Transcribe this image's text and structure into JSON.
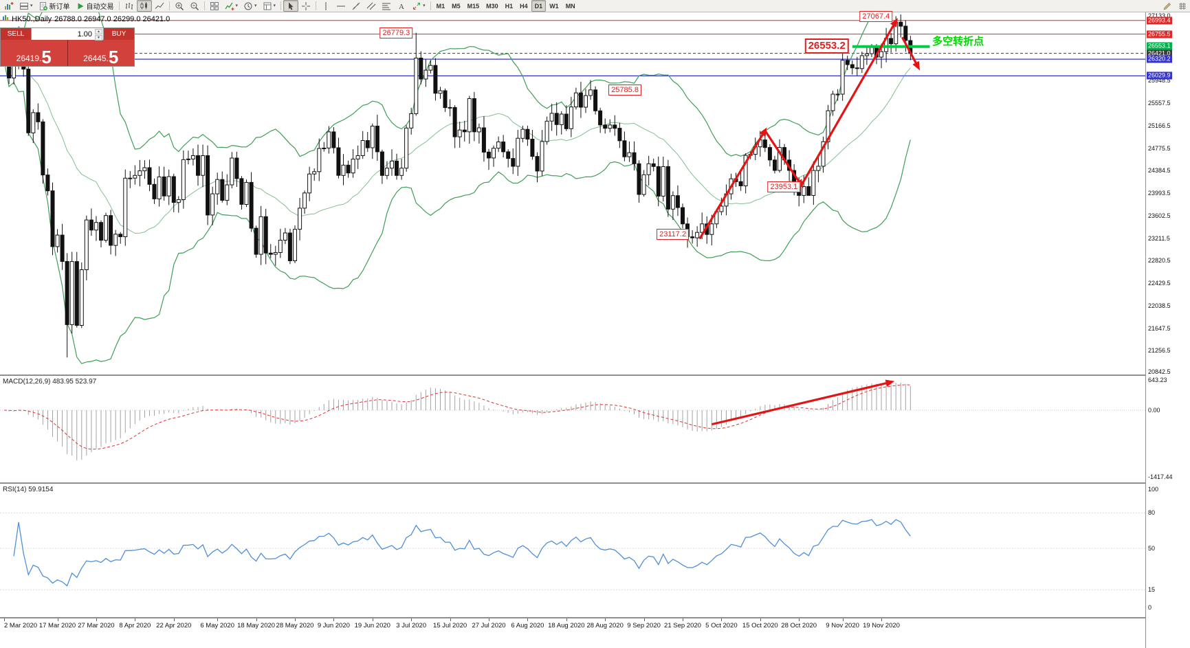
{
  "app": {
    "toolbar": {
      "items": [
        {
          "type": "button",
          "name": "new-chart-button",
          "icon": "chart-add"
        },
        {
          "type": "button",
          "name": "profiles-button",
          "icon": "layout",
          "caret": true
        },
        {
          "type": "button",
          "name": "new-order-button",
          "icon": "order",
          "label": "新订单"
        },
        {
          "type": "button",
          "name": "autotrading-button",
          "icon": "play",
          "label": "自动交易"
        },
        {
          "type": "sep"
        },
        {
          "type": "button",
          "name": "bar-chart-button",
          "icon": "bars"
        },
        {
          "type": "button",
          "name": "candlestick-chart-button",
          "icon": "candles",
          "active": true
        },
        {
          "type": "button",
          "name": "line-chart-button",
          "icon": "line"
        },
        {
          "type": "sep"
        },
        {
          "type": "button",
          "name": "zoom-in-button",
          "icon": "zoom-in"
        },
        {
          "type": "button",
          "name": "zoom-out-button",
          "icon": "zoom-out"
        },
        {
          "type": "sep"
        },
        {
          "type": "button",
          "name": "tile-windows-button",
          "icon": "tile"
        },
        {
          "type": "button",
          "name": "indicators-button",
          "icon": "indicators",
          "caret": true
        },
        {
          "type": "button",
          "name": "periods-button",
          "icon": "clock",
          "caret": true
        },
        {
          "type": "button",
          "name": "templates-button",
          "icon": "template",
          "caret": true
        },
        {
          "type": "sep"
        },
        {
          "type": "button",
          "name": "cursor-button",
          "icon": "cursor",
          "active": true
        },
        {
          "type": "button",
          "name": "crosshair-button",
          "icon": "crosshair"
        },
        {
          "type": "sep"
        },
        {
          "type": "button",
          "name": "vertical-line-button",
          "icon": "vline"
        },
        {
          "type": "button",
          "name": "horizontal-line-button",
          "icon": "hline"
        },
        {
          "type": "button",
          "name": "trendline-button",
          "icon": "tline"
        },
        {
          "type": "button",
          "name": "channel-button",
          "icon": "channel"
        },
        {
          "type": "button",
          "name": "fibonacci-button",
          "icon": "fibo"
        },
        {
          "type": "button",
          "name": "text-label-button",
          "icon": "text"
        },
        {
          "type": "button",
          "name": "arrows-button",
          "icon": "arrows",
          "caret": true
        },
        {
          "type": "sep"
        },
        {
          "type": "button",
          "name": "timeframe-m1",
          "label": "M1",
          "tf": true
        },
        {
          "type": "button",
          "name": "timeframe-m5",
          "label": "M5",
          "tf": true
        },
        {
          "type": "button",
          "name": "timeframe-m15",
          "label": "M15",
          "tf": true
        },
        {
          "type": "button",
          "name": "timeframe-m30",
          "label": "M30",
          "tf": true
        },
        {
          "type": "button",
          "name": "timeframe-h1",
          "label": "H1",
          "tf": true
        },
        {
          "type": "button",
          "name": "timeframe-h4",
          "label": "H4",
          "tf": true
        },
        {
          "type": "button",
          "name": "timeframe-d1",
          "label": "D1",
          "tf": true,
          "active": true
        },
        {
          "type": "button",
          "name": "timeframe-w1",
          "label": "W1",
          "tf": true
        },
        {
          "type": "button",
          "name": "timeframe-mn",
          "label": "MN",
          "tf": true
        },
        {
          "type": "spacer"
        },
        {
          "type": "button",
          "name": "pencil-tool-button",
          "icon": "pencil"
        },
        {
          "type": "button",
          "name": "overflow-button",
          "icon": "grid"
        }
      ]
    }
  },
  "chart": {
    "title_symbol": "HK50.,Daily",
    "title_ohlc": "26788.0 26947.0 26299.0 26421.0"
  },
  "one_click": {
    "sell_label": "SELL",
    "buy_label": "BUY",
    "volume": "1.00",
    "sell_price_head": "26419.",
    "sell_price_big": "5",
    "buy_price_head": "26445.",
    "buy_price_big": "5"
  },
  "indicators": {
    "macd_label": "MACD(12,26,9) 483.95 523.97",
    "rsi_label": "RSI(14) 59.9154"
  },
  "price_axis": {
    "labels": [
      {
        "v": 27133.0,
        "text": "27133.0"
      },
      {
        "v": 25948.5,
        "text": "25948.5"
      },
      {
        "v": 25557.5,
        "text": "25557.5"
      },
      {
        "v": 25166.5,
        "text": "25166.5"
      },
      {
        "v": 24775.5,
        "text": "24775.5"
      },
      {
        "v": 24384.5,
        "text": "24384.5"
      },
      {
        "v": 23993.5,
        "text": "23993.5"
      },
      {
        "v": 23602.5,
        "text": "23602.5"
      },
      {
        "v": 23211.5,
        "text": "23211.5"
      },
      {
        "v": 22820.5,
        "text": "22820.5"
      },
      {
        "v": 22429.5,
        "text": "22429.5"
      },
      {
        "v": 22038.5,
        "text": "22038.5"
      },
      {
        "v": 21647.5,
        "text": "21647.5"
      },
      {
        "v": 21256.5,
        "text": "21256.5"
      },
      {
        "v": 20842.5,
        "text": "20842.5"
      }
    ],
    "lines": [
      {
        "price": 26993.4,
        "label": "26993.4",
        "color": "#e02828",
        "type": "solid",
        "width": 1
      },
      {
        "price": 26755.5,
        "label": "26755.5",
        "color": "#e02828",
        "type": "solid",
        "width": 1
      },
      {
        "price": 26553.1,
        "label": "26553.1",
        "color": "#00b44c",
        "segment": true
      },
      {
        "price": 26421.0,
        "label": "26421.0",
        "color": "#3c3c3c",
        "type": "dashed",
        "width": 1
      },
      {
        "price": 26320.2,
        "label": "26320.2",
        "color": "#3434cc",
        "type": "solid",
        "width": 1.2
      },
      {
        "price": 26029.9,
        "label": "26029.9",
        "color": "#3434cc",
        "type": "solid",
        "width": 1.2
      }
    ]
  },
  "time_axis": {
    "ticks": [
      {
        "i": 0,
        "label": "2 Mar 2020"
      },
      {
        "i": 11,
        "label": "17 Mar 2020"
      },
      {
        "i": 19,
        "label": "27 Mar 2020"
      },
      {
        "i": 27,
        "label": "8 Apr 2020"
      },
      {
        "i": 35,
        "label": "22 Apr 2020"
      },
      {
        "i": 44,
        "label": "6 May 2020"
      },
      {
        "i": 52,
        "label": "18 May 2020"
      },
      {
        "i": 60,
        "label": "28 May 2020"
      },
      {
        "i": 68,
        "label": "9 Jun 2020"
      },
      {
        "i": 76,
        "label": "19 Jun 2020"
      },
      {
        "i": 84,
        "label": "3 Jul 2020"
      },
      {
        "i": 92,
        "label": "15 Jul 2020"
      },
      {
        "i": 100,
        "label": "27 Jul 2020"
      },
      {
        "i": 108,
        "label": "6 Aug 2020"
      },
      {
        "i": 116,
        "label": "18 Aug 2020"
      },
      {
        "i": 124,
        "label": "28 Aug 2020"
      },
      {
        "i": 132,
        "label": "9 Sep 2020"
      },
      {
        "i": 140,
        "label": "21 Sep 2020"
      },
      {
        "i": 148,
        "label": "5 Oct 2020"
      },
      {
        "i": 156,
        "label": "15 Oct 2020"
      },
      {
        "i": 164,
        "label": "28 Oct 2020"
      },
      {
        "i": 173,
        "label": "9 Nov 2020"
      },
      {
        "i": 181,
        "label": "19 Nov 2020"
      }
    ]
  },
  "annotations": {
    "price_labels": [
      {
        "text": "26779.3",
        "i": 85,
        "price": 26779.3,
        "side": "left",
        "size": "s"
      },
      {
        "text": "27067.4",
        "i": 184,
        "price": 27067.4,
        "side": "left",
        "size": "s"
      },
      {
        "text": "26553.2",
        "i": 175,
        "price": 26553.2,
        "side": "left",
        "size": "l"
      },
      {
        "text": "25785.8",
        "i": 124,
        "price": 25785.8,
        "side": "right",
        "size": "s"
      },
      {
        "text": "23953.1",
        "i": 165,
        "price": 24100,
        "side": "left",
        "size": "s"
      },
      {
        "text": "23117.2",
        "i": 142,
        "price": 23280,
        "side": "left",
        "size": "s"
      }
    ],
    "arrows": [
      {
        "panel": "price",
        "i1": 143.5,
        "p1": 23200,
        "i2": 157,
        "p2": 25080
      },
      {
        "panel": "price",
        "i1": 157,
        "p1": 25080,
        "i2": 164.5,
        "p2": 24130
      },
      {
        "panel": "price",
        "i1": 164.5,
        "p1": 24130,
        "i2": 184,
        "p2": 26980
      },
      {
        "panel": "price",
        "i1": 185.3,
        "p1": 26700,
        "i2": 188.6,
        "p2": 26180
      },
      {
        "panel": "macd",
        "i1": 146,
        "p1": -300,
        "i2": 183,
        "p2": 600
      }
    ],
    "green_line": {
      "i1": 175,
      "i2": 191,
      "price": 26540,
      "color": "#00cc44",
      "width": 4
    },
    "green_text": {
      "text": "多空转折点",
      "i": 191.5,
      "price": 26660,
      "color": "#00d800"
    }
  },
  "chart_data": {
    "type": "candlestick",
    "main": {
      "symbol": "HK50.",
      "timeframe": "Daily",
      "ohlc_current": {
        "open": 26788.0,
        "high": 26947.0,
        "low": 26299.0,
        "close": 26421.0
      },
      "bid": 26419.5,
      "ask": 26445.5,
      "ylim": [
        20842.5,
        27133.0
      ],
      "first_open": 26390,
      "closes": [
        26292,
        25993,
        26222,
        26768,
        26147,
        25040,
        25392,
        25232,
        24309,
        24033,
        23064,
        23264,
        22806,
        21709,
        22805,
        21696,
        22663,
        23527,
        23352,
        23484,
        23175,
        23603,
        23086,
        23280,
        23236,
        24253,
        24254,
        24300,
        24380,
        24435,
        24145,
        23893,
        24276,
        23944,
        24280,
        23831,
        23880,
        24575,
        24586,
        24644,
        24302,
        24644,
        23613,
        23981,
        24230,
        23868,
        24137,
        24602,
        24245,
        23797,
        24180,
        23384,
        22930,
        23584,
        22952,
        22931,
        22961,
        23176,
        23301,
        22818,
        23365,
        23732,
        23996,
        24326,
        24366,
        24770,
        24776,
        25057,
        24781,
        24301,
        24480,
        24344,
        24585,
        24644,
        24907,
        24781,
        25157,
        24710,
        24301,
        24427,
        24550,
        24301,
        24427,
        25124,
        25373,
        26339,
        25975,
        26129,
        26211,
        25727,
        25772,
        25478,
        25481,
        24971,
        25089,
        25058,
        25635,
        25058,
        25128,
        24706,
        24603,
        24773,
        24883,
        24711,
        24595,
        24459,
        24946,
        25102,
        24931,
        24631,
        24377,
        24890,
        25244,
        25379,
        25183,
        25367,
        25113,
        25491,
        25734,
        25486,
        25688,
        25786,
        25422,
        25177,
        25120,
        25177,
        25120,
        24903,
        24624,
        24695,
        24503,
        23970,
        24313,
        24503,
        24455,
        23942,
        24455,
        23716,
        23950,
        23742,
        23459,
        23235,
        23217,
        23311,
        23459,
        23275,
        23459,
        23671,
        23767,
        23980,
        24242,
        24193,
        24119,
        24649,
        24667,
        24797,
        24918,
        24786,
        24569,
        24387,
        24786,
        24569,
        24387,
        24107,
        23953,
        24107,
        23953,
        24386,
        24460,
        24886,
        25425,
        25712,
        25713,
        26301,
        26226,
        26169,
        26157,
        26381,
        26415,
        26544,
        26356,
        26451,
        26681,
        26588,
        26964,
        26894,
        26644,
        26421
      ],
      "wick_overrides": {
        "13": {
          "low": 21139.0
        },
        "85": {
          "high": 26779.3
        },
        "142": {
          "low": 23117.2
        },
        "166": {
          "low": 23953.1
        },
        "184": {
          "high": 27067.4
        }
      },
      "bollinger": {
        "period": 20,
        "deviation": 2
      }
    },
    "macd": {
      "type": "histogram+signal",
      "params": [
        12,
        26,
        9
      ],
      "current": [
        483.95,
        523.97
      ],
      "ylim": [
        -1417.44,
        643.23
      ],
      "axis": [
        {
          "v": 643.23,
          "text": "643.23"
        },
        {
          "v": 0,
          "text": "0.00"
        },
        {
          "v": -1417.44,
          "text": "-1417.44"
        }
      ]
    },
    "rsi": {
      "type": "line",
      "period": 14,
      "current": 59.9154,
      "ylim": [
        0,
        100
      ],
      "axis": [
        {
          "v": 100,
          "text": "100"
        },
        {
          "v": 80,
          "text": "80"
        },
        {
          "v": 50,
          "text": "50"
        },
        {
          "v": 15,
          "text": "15"
        },
        {
          "v": 0,
          "text": "0"
        }
      ],
      "levels": [
        80,
        50,
        15
      ]
    }
  }
}
